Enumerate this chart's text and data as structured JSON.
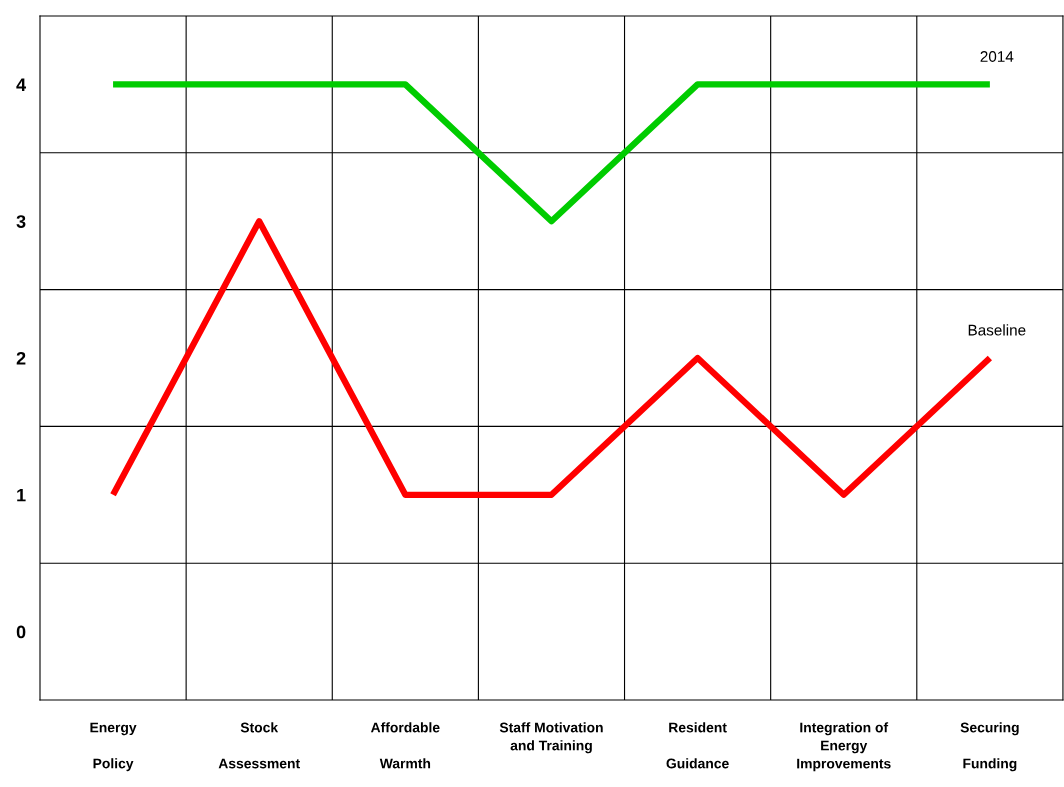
{
  "chart_data": {
    "type": "line",
    "categories": [
      "Energy\n\nPolicy",
      "Stock\n\nAssessment",
      "Affordable\n\nWarmth",
      "Staff Motivation\nand Training",
      "Resident\n\nGuidance",
      "Integration of\nEnergy\nImprovements",
      "Securing\n\nFunding"
    ],
    "series": [
      {
        "name": "2014",
        "color": "#00cc00",
        "values": [
          4,
          4,
          4,
          3,
          4,
          4,
          4
        ]
      },
      {
        "name": "Baseline",
        "color": "#ff0000",
        "values": [
          1,
          3,
          1,
          1,
          2,
          1,
          2
        ]
      }
    ],
    "ylim": [
      -0.5,
      4.5
    ],
    "yticks": [
      0,
      1,
      2,
      3,
      4
    ],
    "grid": true,
    "marker": "none",
    "line_style": "solid"
  }
}
